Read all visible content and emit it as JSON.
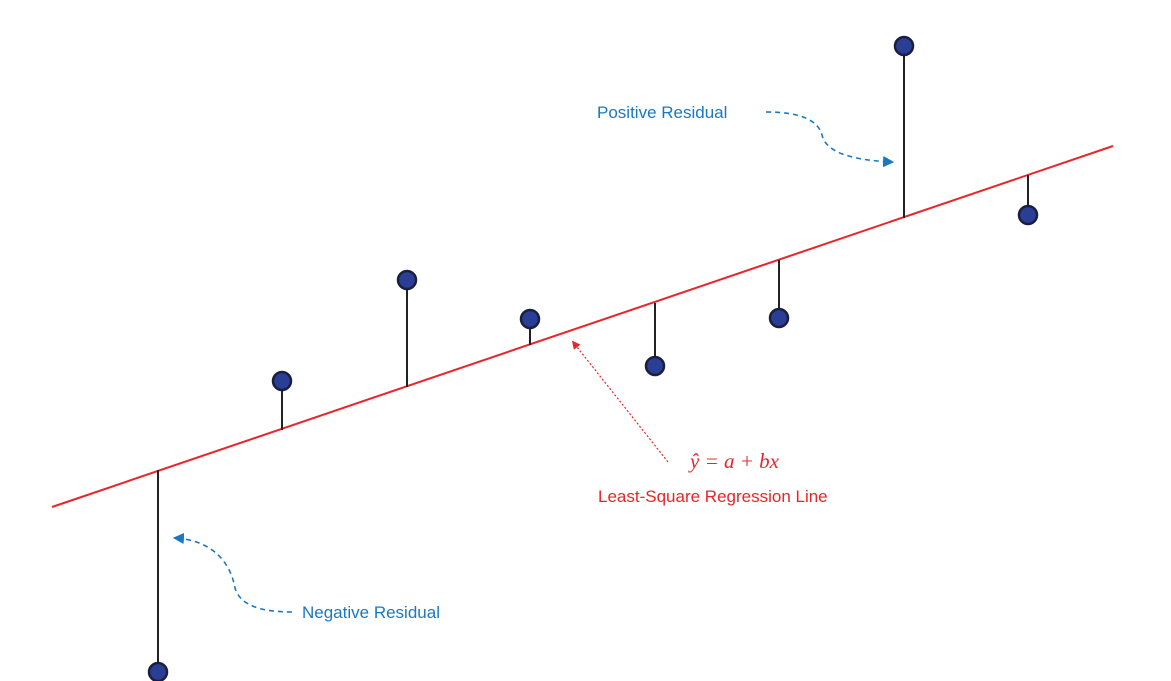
{
  "colors": {
    "regression_line": "#e8252b",
    "residual_line": "#222222",
    "point_fill": "#2b3e96",
    "point_stroke": "#1a1f3c",
    "annotation_blue": "#1a78c2",
    "annotation_red": "#e8252b"
  },
  "regression_line": {
    "equation": "ŷ = a + bx",
    "label": "Least-Square Regression Line"
  },
  "annotations": {
    "positive_residual": "Positive Residual",
    "negative_residual": "Negative Residual"
  },
  "points": [
    {
      "id": 1,
      "residual_sign": "negative"
    },
    {
      "id": 2,
      "residual_sign": "positive"
    },
    {
      "id": 3,
      "residual_sign": "positive"
    },
    {
      "id": 4,
      "residual_sign": "positive"
    },
    {
      "id": 5,
      "residual_sign": "negative"
    },
    {
      "id": 6,
      "residual_sign": "negative"
    },
    {
      "id": 7,
      "residual_sign": "positive"
    },
    {
      "id": 8,
      "residual_sign": "negative"
    }
  ]
}
